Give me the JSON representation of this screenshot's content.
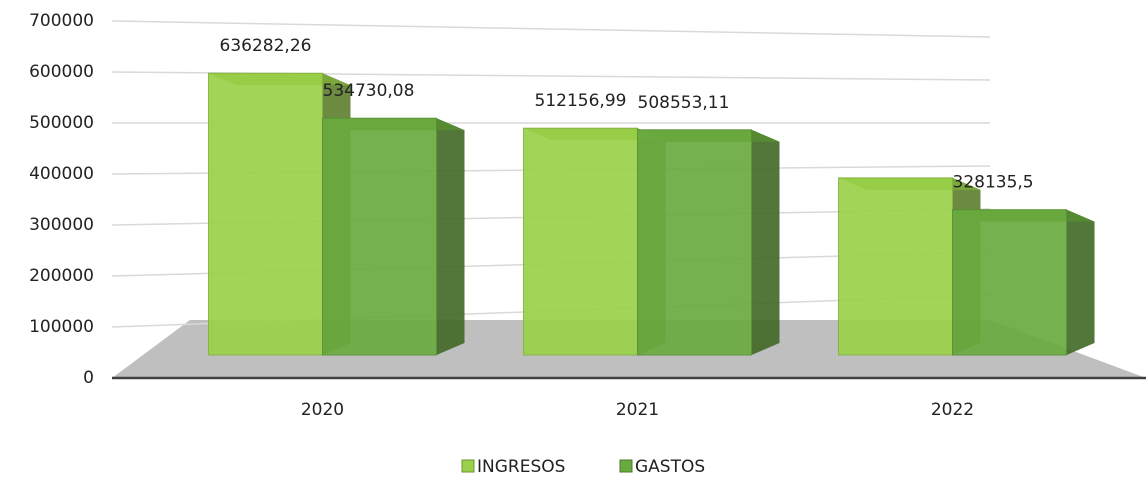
{
  "chart_data": {
    "type": "bar3d",
    "categories": [
      "2020",
      "2021",
      "2022"
    ],
    "series": [
      {
        "name": "INGRESOS",
        "color": "#9bd14a",
        "values": [
          636282.26,
          512156.99,
          400000
        ],
        "value_labels": [
          "636282,26",
          "512156,99",
          null
        ]
      },
      {
        "name": "GASTOS",
        "color": "#6aab3f",
        "values": [
          534730.08,
          508553.11,
          328135.5
        ],
        "value_labels": [
          "534730,08",
          "508553,11",
          "328135,5"
        ]
      }
    ],
    "ylim": [
      0,
      700000
    ],
    "yticks": [
      0,
      100000,
      200000,
      300000,
      400000,
      500000,
      600000,
      700000
    ],
    "grid": true,
    "legend": "bottom"
  }
}
